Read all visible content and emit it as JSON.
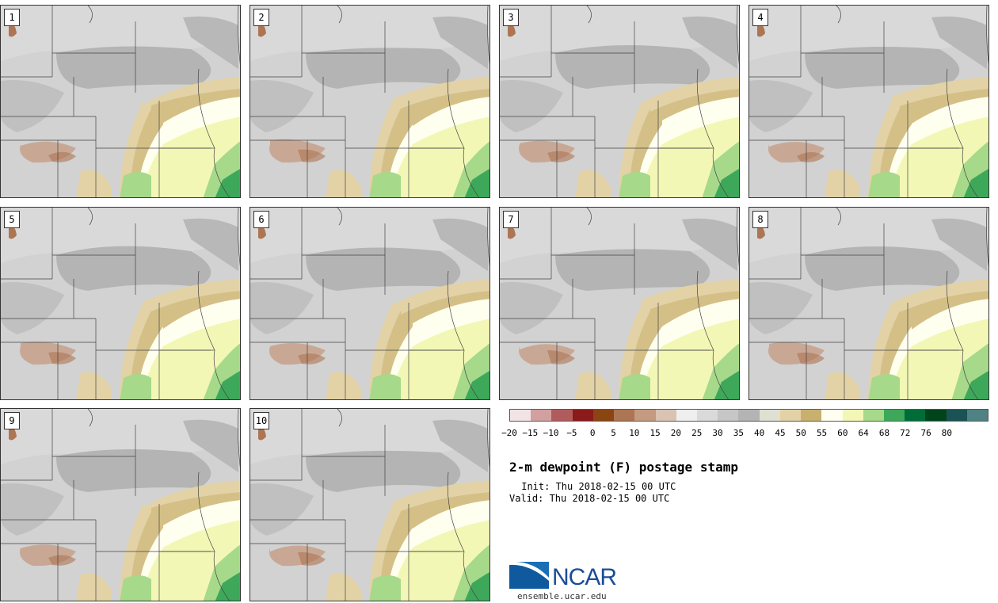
{
  "figure": {
    "title": "2-m dewpoint (F) postage stamp",
    "init": " Init: Thu 2018-02-15 00 UTC",
    "valid": "Valid: Thu 2018-02-15 00 UTC",
    "site": "ensemble.ucar.edu",
    "logo_text": "NCAR"
  },
  "members": [
    "1",
    "2",
    "3",
    "4",
    "5",
    "6",
    "7",
    "8",
    "9",
    "10"
  ],
  "colorbar": {
    "colors": [
      "#f2e4e4",
      "#d2a0a0",
      "#b05c5c",
      "#8b1a1a",
      "#8b4513",
      "#ad7553",
      "#c49a80",
      "#dbc3b3",
      "#efefef",
      "#dadada",
      "#c6c6c6",
      "#b4b4b4",
      "#e0e0d2",
      "#e2d2a6",
      "#c9b06e",
      "#fffff0",
      "#f3f7b5",
      "#a6d98a",
      "#3ea85a",
      "#006d38",
      "#00441b",
      "#1a5255",
      "#4f8282"
    ],
    "ticks": [
      "−20",
      "−15",
      "−10",
      "−5",
      "0",
      "5",
      "10",
      "15",
      "20",
      "25",
      "30",
      "35",
      "40",
      "45",
      "50",
      "55",
      "60",
      "64",
      "68",
      "72",
      "76",
      "80"
    ]
  }
}
